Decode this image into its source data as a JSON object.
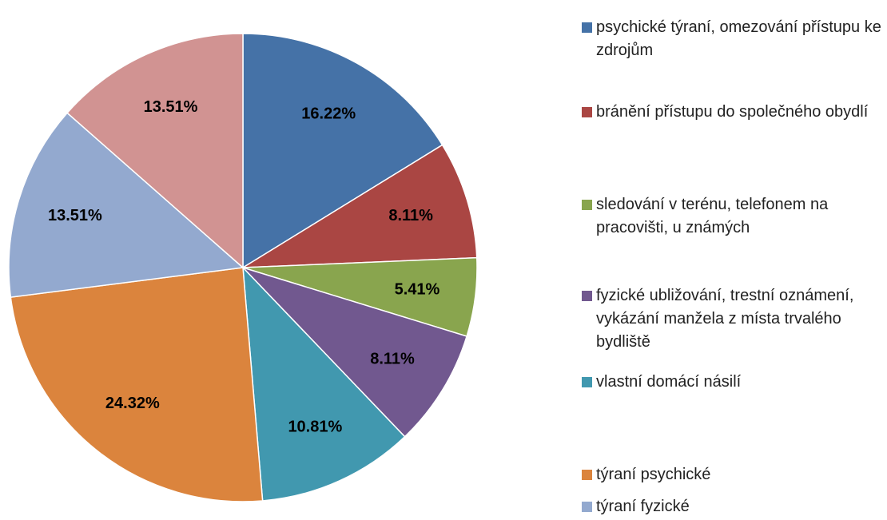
{
  "chart_data": {
    "type": "pie",
    "categories": [
      "psychické týraní, omezování přístupu ke zdrojům",
      "bránění přístupu do společného obydlí",
      "sledování v terénu, telefonem na pracovišti, u známých",
      "fyzické ubližování, trestní oznámení, vykázání manžela z místa trvalého bydliště",
      "vlastní domácí násilí",
      "týraní psychické",
      "týraní fyzické",
      null
    ],
    "values": [
      16.22,
      8.11,
      5.41,
      8.11,
      10.81,
      24.32,
      13.51,
      13.51
    ],
    "value_labels": [
      "16.22%",
      "8.11%",
      "5.41%",
      "8.11%",
      "10.81%",
      "24.32%",
      "13.51%",
      "13.51%"
    ],
    "colors": [
      "#4572a7",
      "#aa4643",
      "#89a54e",
      "#71588f",
      "#4198af",
      "#db843d",
      "#93a9cf",
      "#d19392"
    ],
    "legend": "right"
  }
}
